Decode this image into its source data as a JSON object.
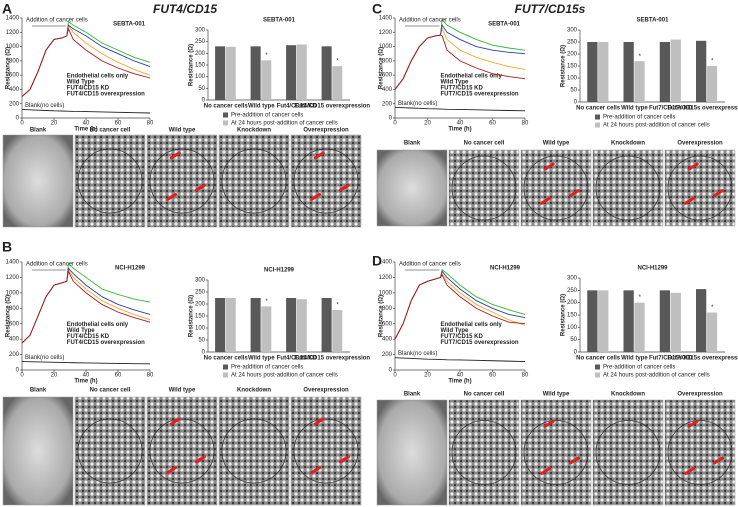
{
  "panels": [
    {
      "letter": "A",
      "title": "FUT4/CD15",
      "images": [
        "Blank",
        "No cancer cell",
        "Wild type",
        "Knockdown",
        "Overexpression"
      ]
    },
    {
      "letter": "B",
      "images": [
        "Blank",
        "No cancer cell",
        "Wild type",
        "Knockdown",
        "Overexpression"
      ]
    },
    {
      "letter": "C",
      "title": "FUT7/CD15s",
      "images": [
        "Blank",
        "No cancer cell",
        "Wild type",
        "Knockdown",
        "Overexpression"
      ]
    },
    {
      "letter": "D",
      "images": [
        "Blank",
        "No cancer cell",
        "Wild type",
        "Knockdown",
        "Overexpression"
      ]
    }
  ],
  "chart_data": [
    {
      "type": "line",
      "title": "SEBTA-001",
      "annotation": "Addition of cancer cells",
      "x_label": "Time (h)",
      "y_label": "Resistance (Ω)",
      "x": [
        0,
        5,
        10,
        15,
        20,
        25,
        28,
        29,
        32,
        40,
        50,
        60,
        70,
        80
      ],
      "xlim": [
        0,
        80
      ],
      "xticks": [
        0,
        20,
        40,
        60,
        80
      ],
      "ylim": [
        0,
        1400
      ],
      "yticks": [
        0,
        200,
        400,
        600,
        800,
        1000,
        1200,
        1400
      ],
      "series": [
        {
          "name": "Endothelial cells only",
          "color": "#2eb82e",
          "values": [
            300,
            400,
            650,
            950,
            1100,
            1120,
            1150,
            1350,
            1300,
            1200,
            1050,
            950,
            850,
            780
          ]
        },
        {
          "name": "Wild Type",
          "color": "#f0a830",
          "values": [
            300,
            400,
            650,
            950,
            1100,
            1120,
            1150,
            1300,
            1200,
            1050,
            900,
            780,
            680,
            600
          ]
        },
        {
          "name": "FUT4/CD15 KD",
          "color": "#2b3fa8",
          "values": [
            300,
            400,
            650,
            950,
            1100,
            1120,
            1150,
            1300,
            1250,
            1150,
            1000,
            900,
            800,
            720
          ]
        },
        {
          "name": "FUT4/CD15 overexpression",
          "color": "#b01818",
          "values": [
            300,
            400,
            650,
            950,
            1100,
            1120,
            1150,
            1250,
            1100,
            950,
            800,
            700,
            620,
            560
          ]
        },
        {
          "name": "Blank(no cells)",
          "color": "#222222",
          "label_on_line": true,
          "values": [
            120,
            115,
            110,
            105,
            100,
            98,
            95,
            95,
            92,
            90,
            85,
            80,
            75,
            70
          ]
        }
      ]
    },
    {
      "type": "bar",
      "title": "SEBTA-001",
      "y_label": "Resistance (Ω)",
      "ylim": [
        0,
        300
      ],
      "yticks": [
        0,
        50,
        100,
        150,
        200,
        250,
        300
      ],
      "categories": [
        "No cancer cells",
        "Wild type",
        "Fut4/CD15 KD",
        "Fut4/CD15 overexpression"
      ],
      "significant": [
        false,
        true,
        false,
        true
      ],
      "significance_mark": "*",
      "series": [
        {
          "name": "Pre-addition of cancer cells",
          "color": "#595959",
          "values": [
            230,
            230,
            235,
            230
          ]
        },
        {
          "name": "At 24 hours post-addition of cancer cells",
          "color": "#bfbfbf",
          "values": [
            228,
            170,
            238,
            145
          ]
        }
      ]
    },
    {
      "type": "line",
      "title": "NCI-H1299",
      "annotation": "Addition of cancer cells",
      "x_label": "Time (h)",
      "y_label": "Resistance (Ω)",
      "x": [
        0,
        5,
        10,
        15,
        20,
        25,
        28,
        29,
        32,
        40,
        50,
        60,
        70,
        80
      ],
      "xlim": [
        0,
        80
      ],
      "xticks": [
        0,
        20,
        40,
        60,
        80
      ],
      "ylim": [
        0,
        1400
      ],
      "yticks": [
        0,
        200,
        400,
        600,
        800,
        1000,
        1200,
        1400
      ],
      "series": [
        {
          "name": "Endothelial cells only",
          "color": "#2eb82e",
          "values": [
            350,
            450,
            700,
            950,
            1100,
            1130,
            1150,
            1380,
            1320,
            1200,
            1050,
            980,
            920,
            880
          ]
        },
        {
          "name": "Wild Type",
          "color": "#f0a830",
          "values": [
            350,
            450,
            700,
            950,
            1100,
            1130,
            1150,
            1300,
            1200,
            1050,
            900,
            800,
            720,
            650
          ]
        },
        {
          "name": "FUT4/CD15 KD",
          "color": "#2b3fa8",
          "values": [
            350,
            450,
            700,
            950,
            1100,
            1130,
            1150,
            1320,
            1250,
            1100,
            950,
            850,
            780,
            720
          ]
        },
        {
          "name": "FUT4/CD15 overexpression",
          "color": "#b01818",
          "values": [
            350,
            450,
            700,
            950,
            1100,
            1130,
            1150,
            1280,
            1150,
            1000,
            850,
            750,
            680,
            620
          ]
        },
        {
          "name": "Blank(no cells)",
          "color": "#222222",
          "label_on_line": true,
          "values": [
            110,
            108,
            105,
            103,
            100,
            98,
            96,
            96,
            94,
            92,
            88,
            85,
            82,
            80
          ]
        }
      ]
    },
    {
      "type": "bar",
      "title": "NCI-H1299",
      "y_label": "Resistance (Ω)",
      "ylim": [
        0,
        300
      ],
      "yticks": [
        0,
        50,
        100,
        150,
        200,
        250,
        300
      ],
      "categories": [
        "No cancer cells",
        "Wild type",
        "Fut4/CD15 KD",
        "Fut4/CD15 overexpression"
      ],
      "significant": [
        false,
        true,
        false,
        true
      ],
      "significance_mark": "*",
      "series": [
        {
          "name": "Pre-addition of cancer cells",
          "color": "#595959",
          "values": [
            225,
            225,
            225,
            225
          ]
        },
        {
          "name": "At 24 hours post-addition of cancer cells",
          "color": "#bfbfbf",
          "values": [
            225,
            190,
            220,
            175
          ]
        }
      ]
    },
    {
      "type": "line",
      "title": "SEBTA-001",
      "annotation": "Addition of cancer cells",
      "x_label": "Time (h)",
      "y_label": "Resistance (Ω)",
      "x": [
        0,
        5,
        10,
        15,
        20,
        25,
        28,
        29,
        32,
        40,
        50,
        60,
        70,
        80
      ],
      "xlim": [
        0,
        80
      ],
      "xticks": [
        0,
        20,
        40,
        60,
        80
      ],
      "ylim": [
        0,
        1400
      ],
      "yticks": [
        0,
        200,
        400,
        600,
        800,
        1000,
        1200,
        1400
      ],
      "series": [
        {
          "name": "Endothelial cells only",
          "color": "#2eb82e",
          "values": [
            400,
            550,
            800,
            1000,
            1120,
            1150,
            1160,
            1380,
            1300,
            1200,
            1100,
            1020,
            980,
            950
          ]
        },
        {
          "name": "Wild Type",
          "color": "#f0a830",
          "values": [
            400,
            550,
            800,
            1000,
            1120,
            1150,
            1160,
            1250,
            1100,
            950,
            850,
            780,
            720,
            680
          ]
        },
        {
          "name": "FUT7/CD15 KD",
          "color": "#2b3fa8",
          "values": [
            400,
            550,
            800,
            1000,
            1120,
            1150,
            1160,
            1300,
            1200,
            1100,
            1000,
            950,
            920,
            900
          ]
        },
        {
          "name": "FUT7/CD15 overexpression",
          "color": "#b01818",
          "values": [
            400,
            550,
            800,
            1000,
            1120,
            1150,
            1160,
            1150,
            950,
            800,
            700,
            620,
            580,
            550
          ]
        },
        {
          "name": "Blank(no cells)",
          "color": "#222222",
          "label_on_line": true,
          "values": [
            150,
            145,
            140,
            135,
            130,
            128,
            125,
            125,
            122,
            120,
            115,
            110,
            105,
            100
          ]
        }
      ]
    },
    {
      "type": "bar",
      "title": "SEBTA-001",
      "y_label": "Resistance (Ω)",
      "ylim": [
        0,
        300
      ],
      "yticks": [
        0,
        50,
        100,
        150,
        200,
        250,
        300
      ],
      "categories": [
        "No cancer cells",
        "Wild type",
        "Fut7/CD15s KD",
        "Fut7/CD15s overexpression"
      ],
      "significant": [
        false,
        true,
        false,
        true
      ],
      "significance_mark": "*",
      "series": [
        {
          "name": "Pre-addition of cancer cells",
          "color": "#595959",
          "values": [
            250,
            250,
            250,
            255
          ]
        },
        {
          "name": "At 24 hours post-addition of cancer cells",
          "color": "#bfbfbf",
          "values": [
            250,
            170,
            260,
            150
          ]
        }
      ]
    },
    {
      "type": "line",
      "title": "NCI-H1299",
      "annotation": "Addition of cancer cells",
      "x_label": "Time (h)",
      "y_label": "Resistance (Ω)",
      "x": [
        0,
        5,
        10,
        15,
        20,
        25,
        28,
        29,
        32,
        40,
        50,
        60,
        70,
        80
      ],
      "xlim": [
        0,
        80
      ],
      "xticks": [
        0,
        20,
        40,
        60,
        80
      ],
      "ylim": [
        0,
        1400
      ],
      "yticks": [
        0,
        200,
        400,
        600,
        800,
        1000,
        1200,
        1400
      ],
      "series": [
        {
          "name": "Endothelial cells only",
          "color": "#2eb82e",
          "values": [
            400,
            600,
            900,
            1100,
            1150,
            1180,
            1200,
            1300,
            1250,
            1100,
            950,
            850,
            780,
            720
          ]
        },
        {
          "name": "Wild Type",
          "color": "#f0a830",
          "values": [
            400,
            600,
            900,
            1100,
            1150,
            1180,
            1200,
            1250,
            1150,
            1000,
            850,
            750,
            650,
            580
          ]
        },
        {
          "name": "FUT7/CD15 KD",
          "color": "#2b3fa8",
          "values": [
            400,
            600,
            900,
            1100,
            1150,
            1180,
            1200,
            1280,
            1200,
            1050,
            900,
            800,
            720,
            680
          ]
        },
        {
          "name": "FUT7/CD15 overexpression",
          "color": "#b01818",
          "values": [
            400,
            600,
            900,
            1100,
            1150,
            1180,
            1200,
            1230,
            1100,
            950,
            800,
            700,
            620,
            600
          ]
        },
        {
          "name": "Blank(no cells)",
          "color": "#222222",
          "label_on_line": true,
          "values": [
            160,
            155,
            150,
            145,
            140,
            138,
            135,
            135,
            132,
            130,
            125,
            120,
            115,
            110
          ]
        }
      ]
    },
    {
      "type": "bar",
      "title": "NCI-H1299",
      "y_label": "Resistance (Ω)",
      "ylim": [
        0,
        300
      ],
      "yticks": [
        0,
        50,
        100,
        150,
        200,
        250,
        300
      ],
      "categories": [
        "No cancer cells",
        "Wild type",
        "Fut7/CD15s KD",
        "Fut7/CD15s overexpression"
      ],
      "significant": [
        false,
        true,
        false,
        true
      ],
      "significance_mark": "*",
      "series": [
        {
          "name": "Pre-addition of cancer cells",
          "color": "#595959",
          "values": [
            250,
            250,
            250,
            255
          ]
        },
        {
          "name": "At 24 hours post-addition of cancer cells",
          "color": "#bfbfbf",
          "values": [
            250,
            200,
            240,
            160
          ]
        }
      ]
    }
  ]
}
